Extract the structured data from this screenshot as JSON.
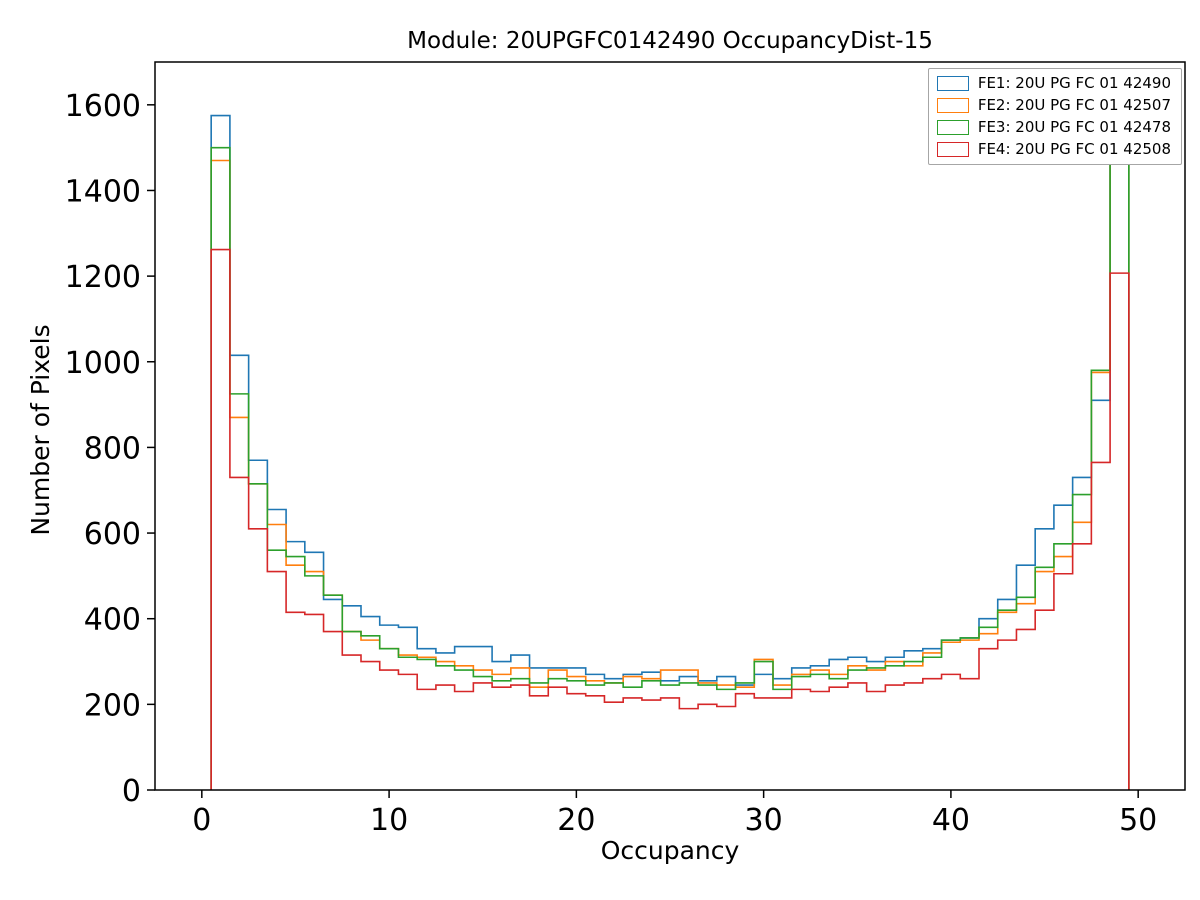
{
  "chart_data": {
    "type": "histogram-step",
    "title": "Module: 20UPGFC0142490 OccupancyDist-15",
    "xlabel": "Occupancy",
    "ylabel": "Number of Pixels",
    "xlim": [
      -2.5,
      52.5
    ],
    "ylim": [
      0,
      1700
    ],
    "xticks": [
      0,
      10,
      20,
      30,
      40,
      50
    ],
    "yticks": [
      0,
      200,
      400,
      600,
      800,
      1000,
      1200,
      1400,
      1600
    ],
    "bin_start": 0.5,
    "bin_width": 1,
    "grid": false,
    "legend_position": "upper right",
    "series": [
      {
        "name": "FE1: 20U PG FC 01 42490",
        "color": "#1f77b4",
        "values": [
          1575,
          1015,
          770,
          655,
          580,
          555,
          445,
          430,
          405,
          385,
          380,
          330,
          320,
          335,
          335,
          300,
          315,
          285,
          285,
          285,
          270,
          260,
          270,
          275,
          255,
          265,
          255,
          265,
          245,
          270,
          260,
          285,
          290,
          305,
          310,
          300,
          310,
          325,
          330,
          350,
          355,
          400,
          445,
          525,
          610,
          665,
          730,
          910,
          1640
        ]
      },
      {
        "name": "FE2: 20U PG FC 01 42507",
        "color": "#ff7f0e",
        "values": [
          1470,
          870,
          715,
          620,
          525,
          510,
          455,
          370,
          350,
          330,
          315,
          310,
          300,
          290,
          280,
          270,
          285,
          240,
          280,
          265,
          255,
          250,
          265,
          260,
          280,
          280,
          250,
          245,
          240,
          305,
          245,
          270,
          280,
          270,
          290,
          280,
          300,
          290,
          320,
          345,
          350,
          365,
          415,
          435,
          510,
          545,
          625,
          975,
          1600
        ]
      },
      {
        "name": "FE3: 20U PG FC 01 42478",
        "color": "#2ca02c",
        "values": [
          1500,
          925,
          715,
          560,
          545,
          500,
          455,
          370,
          360,
          330,
          310,
          305,
          290,
          280,
          265,
          255,
          260,
          250,
          260,
          255,
          245,
          250,
          240,
          255,
          245,
          250,
          245,
          235,
          250,
          300,
          235,
          265,
          270,
          260,
          280,
          285,
          290,
          300,
          310,
          350,
          355,
          380,
          420,
          450,
          520,
          575,
          690,
          980,
          1620
        ]
      },
      {
        "name": "FE4: 20U PG FC 01 42508",
        "color": "#d62728",
        "values": [
          1262,
          730,
          610,
          510,
          415,
          410,
          370,
          315,
          300,
          280,
          270,
          235,
          245,
          230,
          250,
          240,
          245,
          220,
          240,
          225,
          220,
          205,
          215,
          210,
          215,
          190,
          200,
          195,
          225,
          215,
          215,
          235,
          230,
          240,
          250,
          230,
          245,
          250,
          260,
          270,
          260,
          330,
          350,
          375,
          420,
          505,
          575,
          765,
          1207
        ]
      }
    ]
  },
  "layout": {
    "axes_color": "#000000",
    "legend_border_color": "#a6a6a6"
  }
}
